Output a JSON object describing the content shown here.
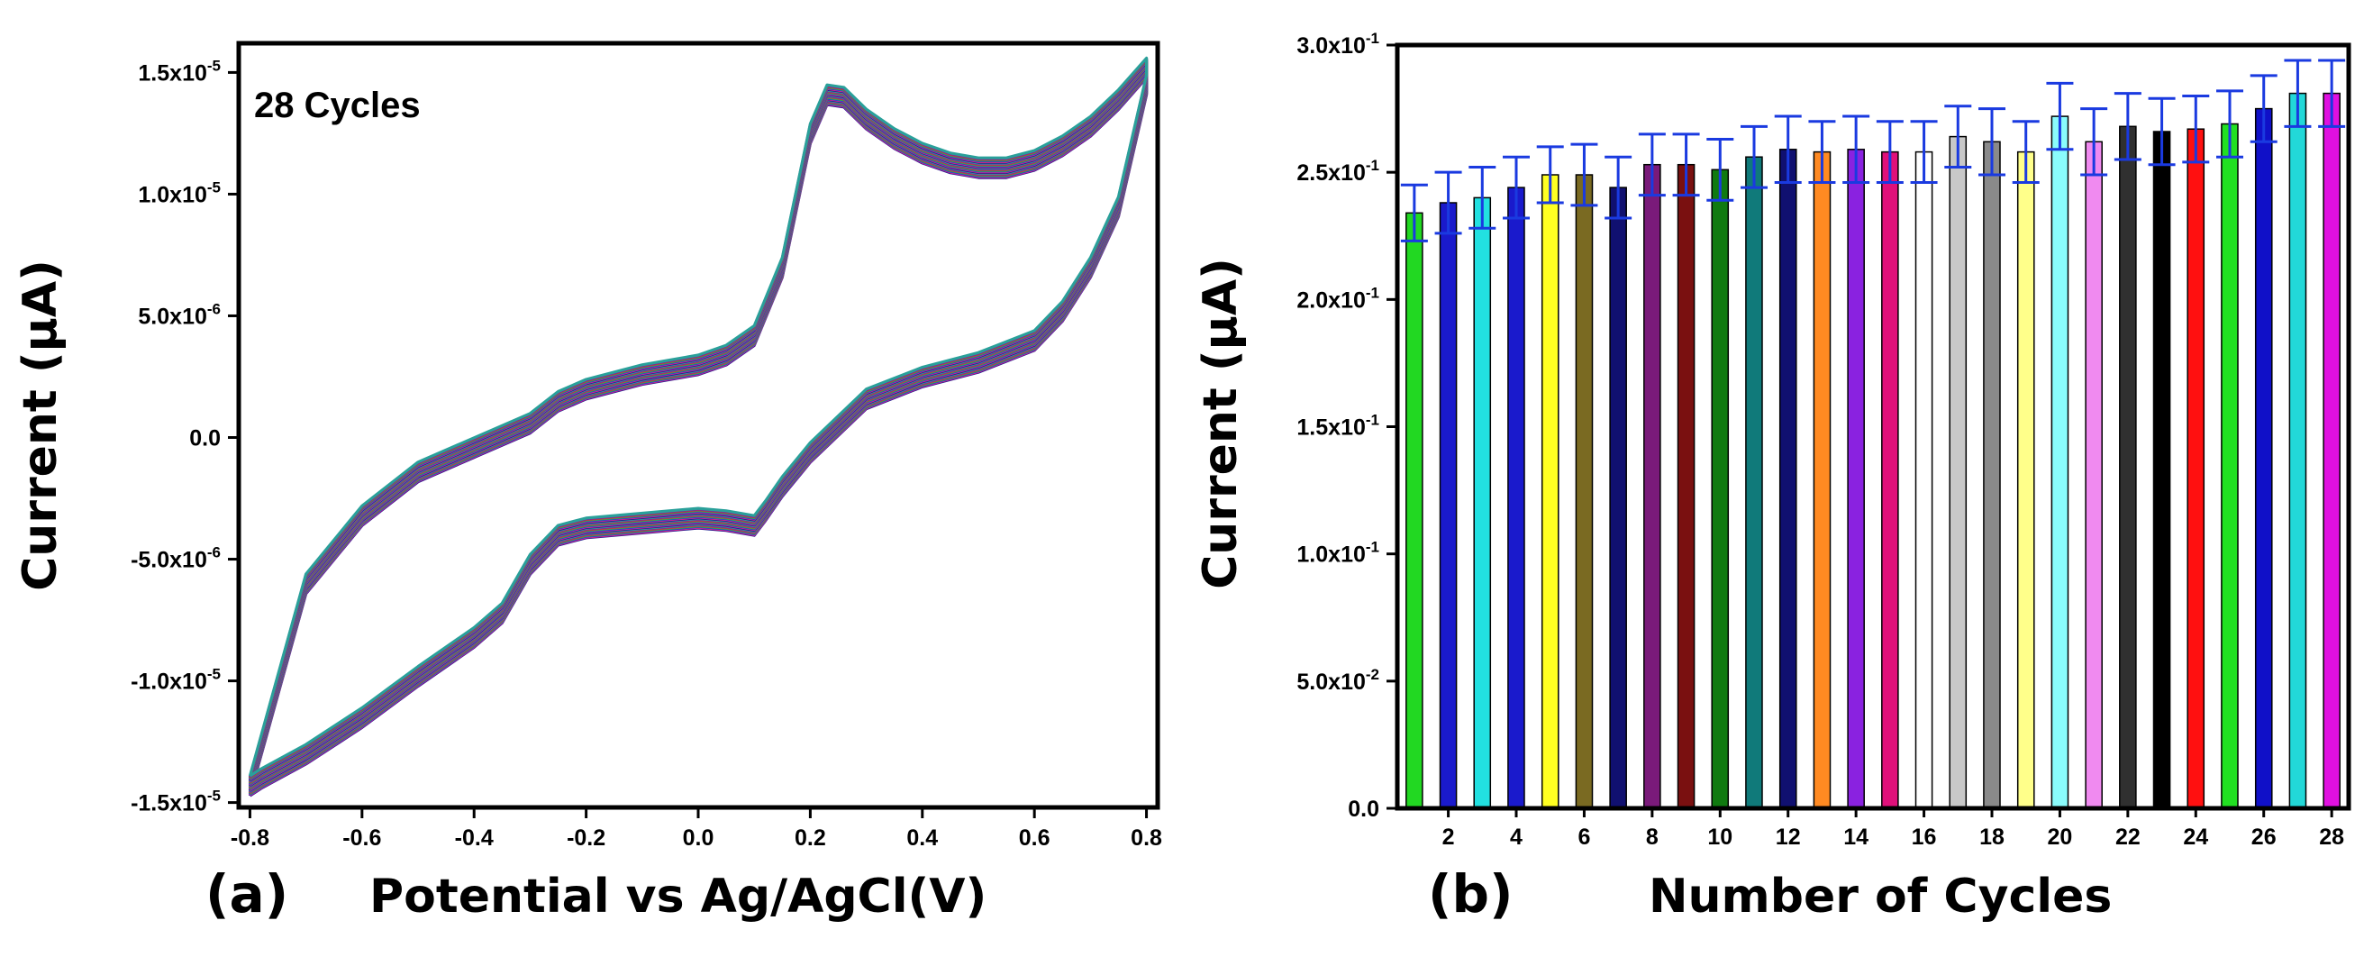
{
  "chart_data": [
    {
      "type": "line",
      "panel": "(a)",
      "annotation": "28 Cycles",
      "xlabel": "Potential vs Ag/AgCl(V)",
      "ylabel": "Current (µA)",
      "xlim": [
        -0.82,
        0.82
      ],
      "ylim": [
        -1.52e-05,
        1.62e-05
      ],
      "x_ticks": [
        -0.8,
        -0.6,
        -0.4,
        -0.2,
        0.0,
        0.2,
        0.4,
        0.6,
        0.8
      ],
      "x_tick_labels": [
        "-0.8",
        "-0.6",
        "-0.4",
        "-0.2",
        "0.0",
        "0.2",
        "0.4",
        "0.6",
        "0.8"
      ],
      "y_ticks": [
        -1.5e-05,
        -1e-05,
        -5e-06,
        0.0,
        5e-06,
        1e-05,
        1.5e-05
      ],
      "y_tick_labels": [
        {
          "mant": "-1.5x10",
          "exp": "-5"
        },
        {
          "mant": "-1.0x10",
          "exp": "-5"
        },
        {
          "mant": "-5.0x10",
          "exp": "-6"
        },
        {
          "mant": "0.0",
          "exp": ""
        },
        {
          "mant": "5.0x10",
          "exp": "-6"
        },
        {
          "mant": "1.0x10",
          "exp": "-5"
        },
        {
          "mant": "1.5x10",
          "exp": "-5"
        }
      ],
      "grid": false,
      "series_count": 28,
      "series_colors": [
        "#1f1f8f",
        "#e0218a",
        "#2a3bd6",
        "#2ab04a",
        "#c23b3b",
        "#7a2a9a",
        "#2aa09a"
      ],
      "forward_sweep": {
        "x": [
          -0.8,
          -0.7,
          -0.6,
          -0.5,
          -0.4,
          -0.3,
          -0.25,
          -0.2,
          -0.1,
          0.0,
          0.05,
          0.1,
          0.15,
          0.2,
          0.23,
          0.26,
          0.3,
          0.35,
          0.4,
          0.45,
          0.5,
          0.55,
          0.6,
          0.65,
          0.7,
          0.75,
          0.8
        ],
        "y": [
          -1.43e-05,
          -6e-06,
          -3.2e-06,
          -1.4e-06,
          -4e-07,
          6e-07,
          1.5e-06,
          2e-06,
          2.6e-06,
          3e-06,
          3.4e-06,
          4.2e-06,
          7e-06,
          1.25e-05,
          1.41e-05,
          1.4e-05,
          1.31e-05,
          1.23e-05,
          1.17e-05,
          1.13e-05,
          1.11e-05,
          1.11e-05,
          1.14e-05,
          1.2e-05,
          1.28e-05,
          1.39e-05,
          1.52e-05
        ]
      },
      "reverse_sweep": {
        "x": [
          0.8,
          0.75,
          0.7,
          0.65,
          0.6,
          0.5,
          0.4,
          0.3,
          0.2,
          0.15,
          0.12,
          0.1,
          0.05,
          0.0,
          -0.1,
          -0.2,
          -0.25,
          -0.3,
          -0.35,
          -0.4,
          -0.5,
          -0.6,
          -0.7,
          -0.78,
          -0.8
        ],
        "y": [
          1.45e-05,
          9.5e-06,
          7e-06,
          5.2e-06,
          4e-06,
          3.1e-06,
          2.5e-06,
          1.6e-06,
          -6e-07,
          -2e-06,
          -3e-06,
          -3.6e-06,
          -3.4e-06,
          -3.3e-06,
          -3.5e-06,
          -3.7e-06,
          -4e-06,
          -5.2e-06,
          -7.2e-06,
          -8.2e-06,
          -9.8e-06,
          -1.15e-05,
          -1.3e-05,
          -1.4e-05,
          -1.43e-05
        ]
      }
    },
    {
      "type": "bar",
      "panel": "(b)",
      "xlabel": "Number of Cycles",
      "ylabel": "Current (µA)",
      "ylim": [
        0.0,
        0.3
      ],
      "y_ticks": [
        0.0,
        0.05,
        0.1,
        0.15,
        0.2,
        0.25,
        0.3
      ],
      "y_tick_labels": [
        {
          "mant": "0.0",
          "exp": ""
        },
        {
          "mant": "5.0x10",
          "exp": "-2"
        },
        {
          "mant": "1.0x10",
          "exp": "-1"
        },
        {
          "mant": "1.5x10",
          "exp": "-1"
        },
        {
          "mant": "2.0x10",
          "exp": "-1"
        },
        {
          "mant": "2.5x10",
          "exp": "-1"
        },
        {
          "mant": "3.0x10",
          "exp": "-1"
        }
      ],
      "x_tick_labels": [
        "2",
        "4",
        "6",
        "8",
        "10",
        "12",
        "14",
        "16",
        "18",
        "20",
        "22",
        "24",
        "26",
        "28"
      ],
      "categories": [
        1,
        2,
        3,
        4,
        5,
        6,
        7,
        8,
        9,
        10,
        11,
        12,
        13,
        14,
        15,
        16,
        17,
        18,
        19,
        20,
        21,
        22,
        23,
        24,
        25,
        26,
        27,
        28
      ],
      "values": [
        0.234,
        0.238,
        0.24,
        0.244,
        0.249,
        0.249,
        0.244,
        0.253,
        0.253,
        0.251,
        0.256,
        0.259,
        0.258,
        0.259,
        0.258,
        0.258,
        0.264,
        0.262,
        0.258,
        0.272,
        0.262,
        0.268,
        0.266,
        0.267,
        0.269,
        0.275,
        0.281,
        0.281
      ],
      "errors": [
        0.011,
        0.012,
        0.012,
        0.012,
        0.011,
        0.012,
        0.012,
        0.012,
        0.012,
        0.012,
        0.012,
        0.013,
        0.012,
        0.013,
        0.012,
        0.012,
        0.012,
        0.013,
        0.012,
        0.013,
        0.013,
        0.013,
        0.013,
        0.013,
        0.013,
        0.013,
        0.013,
        0.013
      ],
      "bar_colors": [
        "#22d822",
        "#1a1acc",
        "#22e0e0",
        "#1a1acc",
        "#ffff22",
        "#7a6a22",
        "#101070",
        "#7a1a7a",
        "#7a1010",
        "#107a10",
        "#107a7a",
        "#101070",
        "#ff8a22",
        "#8a22e0",
        "#e0107a",
        "#ffffff",
        "#c8c8c8",
        "#8a8a8a",
        "#ffff8a",
        "#8afcfc",
        "#f08af0",
        "#303030",
        "#000000",
        "#ff1010",
        "#22e022",
        "#1010c8",
        "#22d8d8",
        "#e010e0"
      ],
      "error_bar_color": "#1a3ae0"
    }
  ]
}
